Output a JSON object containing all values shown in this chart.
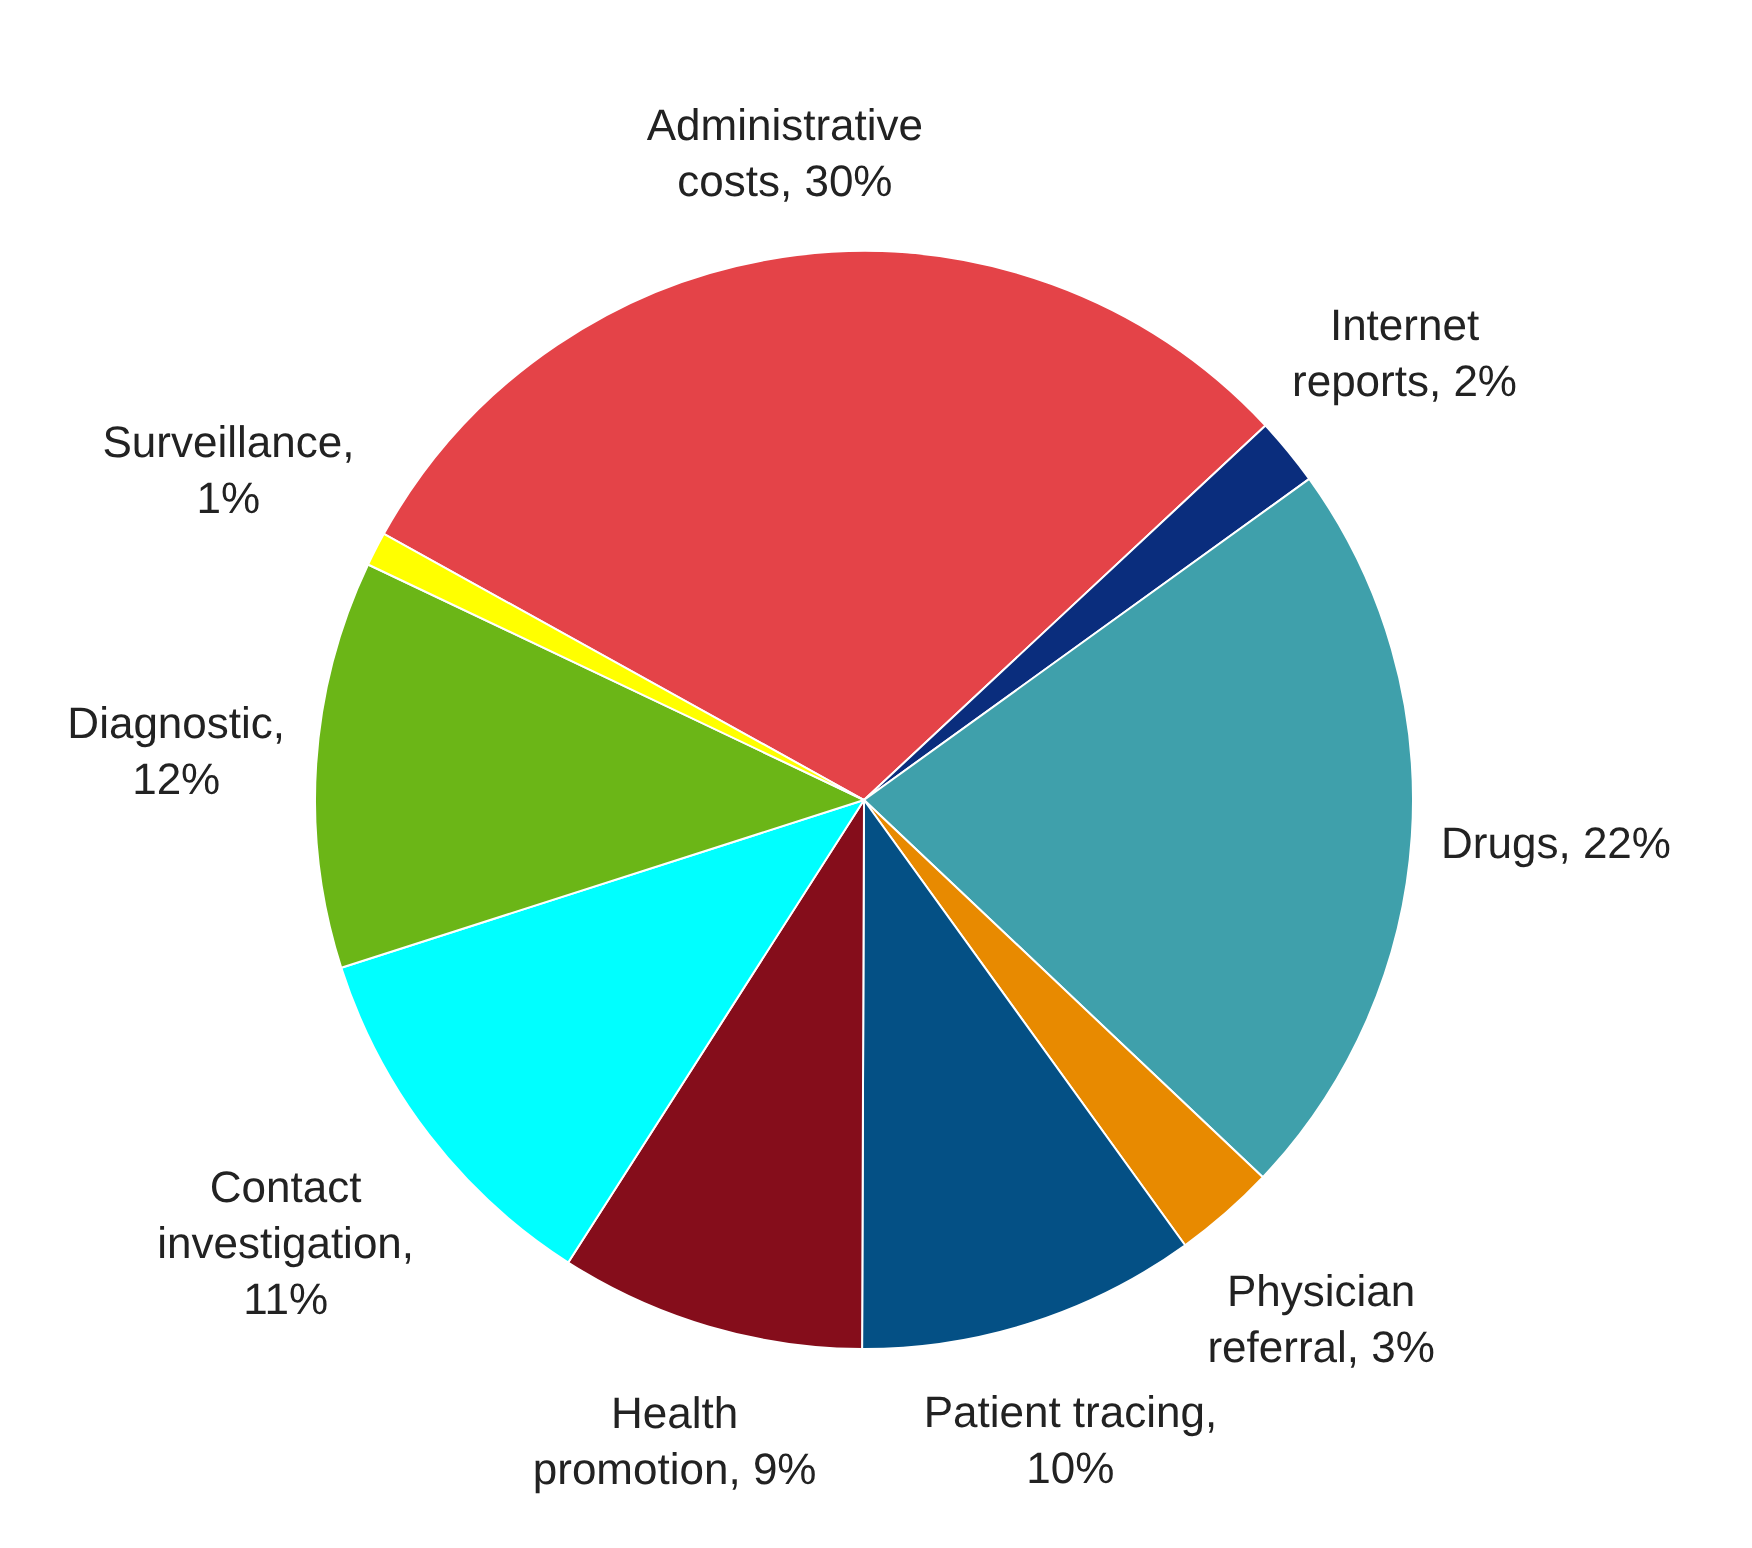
{
  "chart_data": {
    "type": "pie",
    "categories": [
      "Administrative costs, 30%",
      "Internet reports, 2%",
      "Drugs, 22%",
      "Physician referral, 3%",
      "Patient tracing, 10%",
      "Health promotion, 9%",
      "Contact investigation, 11%",
      "Diagnostic, 12%",
      "Surveillance, 1%"
    ],
    "values": [
      30,
      2,
      22,
      3,
      10,
      9,
      11,
      12,
      1
    ],
    "colors": [
      "#e44348",
      "#0a2d7d",
      "#3fa0ab",
      "#e88a00",
      "#045085",
      "#850d1b",
      "#00ffff",
      "#6bb617",
      "#ffff00"
    ],
    "legend": false
  }
}
